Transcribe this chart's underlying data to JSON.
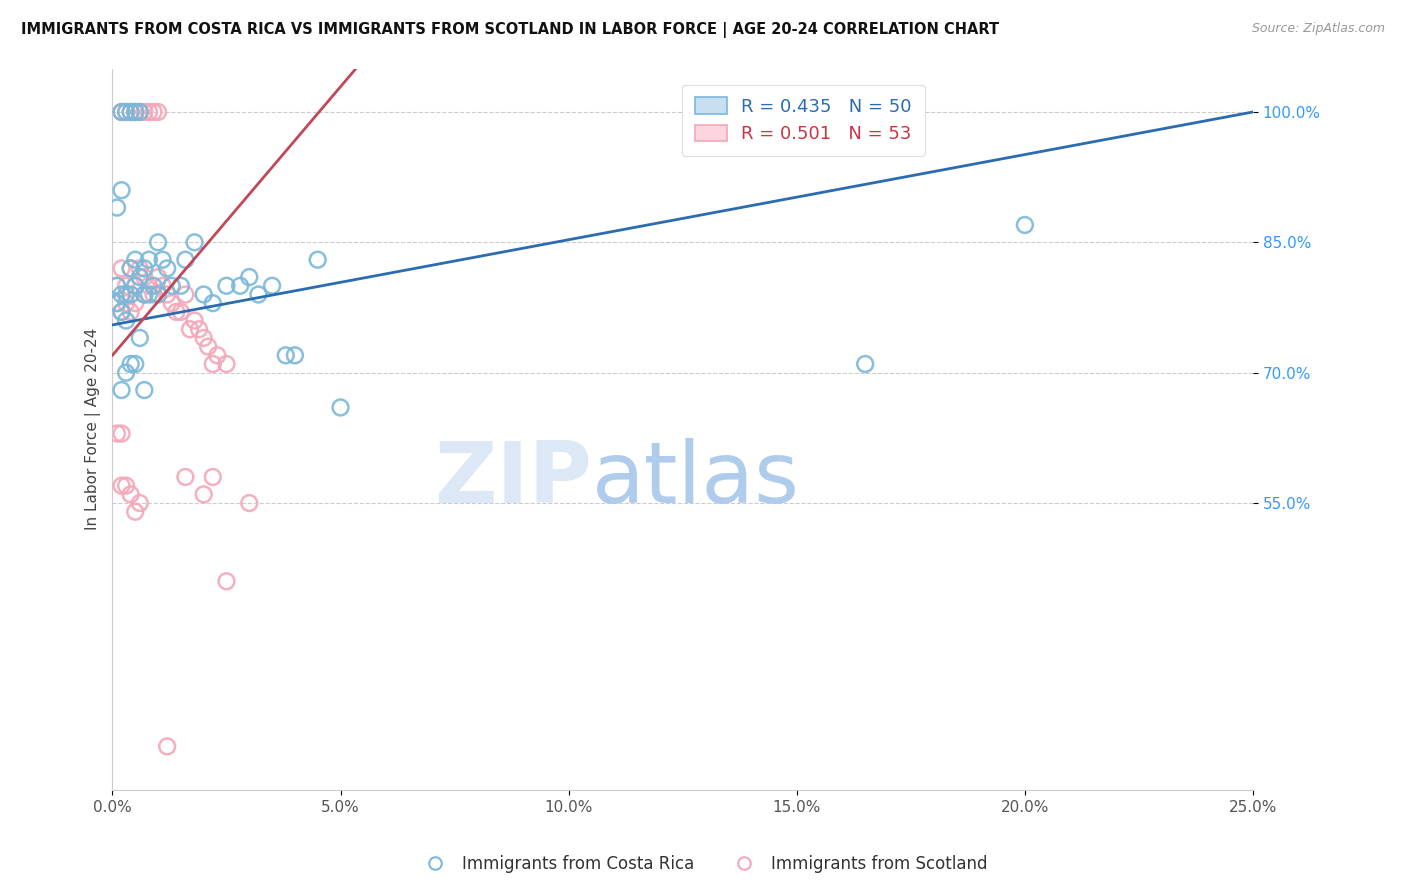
{
  "title": "IMMIGRANTS FROM COSTA RICA VS IMMIGRANTS FROM SCOTLAND IN LABOR FORCE | AGE 20-24 CORRELATION CHART",
  "source": "Source: ZipAtlas.com",
  "ylabel": "In Labor Force | Age 20-24",
  "blue_label": "Immigrants from Costa Rica",
  "pink_label": "Immigrants from Scotland",
  "background_color": "#ffffff",
  "blue_color": "#7ab8d9",
  "pink_color": "#f4a7b8",
  "blue_line_color": "#2b6cb0",
  "pink_line_color": "#c0485a",
  "watermark_zip": "ZIP",
  "watermark_atlas": "atlas",
  "blue_R": 0.435,
  "blue_N": 50,
  "pink_R": 0.501,
  "pink_N": 53,
  "xlim": [
    0.0,
    0.25
  ],
  "ylim": [
    0.22,
    1.05
  ],
  "yticks": [
    0.55,
    0.7,
    0.85,
    1.0
  ],
  "ytick_labels": [
    "55.0%",
    "70.0%",
    "85.0%",
    "100.0%"
  ],
  "xticks": [
    0.0,
    0.05,
    0.1,
    0.15,
    0.2,
    0.25
  ],
  "xtick_labels": [
    "0.0%",
    "5.0%",
    "10.0%",
    "15.0%",
    "20.0%",
    "25.0%"
  ],
  "blue_x": [
    0.001,
    0.001,
    0.002,
    0.002,
    0.002,
    0.003,
    0.003,
    0.003,
    0.004,
    0.004,
    0.004,
    0.005,
    0.005,
    0.005,
    0.006,
    0.006,
    0.007,
    0.007,
    0.008,
    0.008,
    0.009,
    0.01,
    0.01,
    0.011,
    0.012,
    0.013,
    0.015,
    0.016,
    0.018,
    0.02,
    0.022,
    0.025,
    0.028,
    0.03,
    0.032,
    0.035,
    0.038,
    0.04,
    0.045,
    0.05,
    0.001,
    0.002,
    0.002,
    0.003,
    0.004,
    0.005,
    0.006,
    0.007,
    0.2,
    0.165
  ],
  "blue_y": [
    0.8,
    0.78,
    1.0,
    0.79,
    0.77,
    1.0,
    0.79,
    0.76,
    1.0,
    0.82,
    0.79,
    1.0,
    0.83,
    0.8,
    0.81,
    1.0,
    0.82,
    0.79,
    0.83,
    0.79,
    0.8,
    0.85,
    0.79,
    0.83,
    0.82,
    0.8,
    0.8,
    0.83,
    0.85,
    0.79,
    0.78,
    0.8,
    0.8,
    0.81,
    0.79,
    0.8,
    0.72,
    0.72,
    0.83,
    0.66,
    0.89,
    0.91,
    0.68,
    0.7,
    0.71,
    0.71,
    0.74,
    0.68,
    0.87,
    0.71
  ],
  "pink_x": [
    0.001,
    0.001,
    0.002,
    0.002,
    0.002,
    0.003,
    0.003,
    0.003,
    0.004,
    0.004,
    0.004,
    0.005,
    0.005,
    0.005,
    0.005,
    0.006,
    0.006,
    0.007,
    0.007,
    0.007,
    0.008,
    0.008,
    0.009,
    0.009,
    0.01,
    0.01,
    0.011,
    0.012,
    0.013,
    0.014,
    0.015,
    0.016,
    0.017,
    0.018,
    0.019,
    0.02,
    0.021,
    0.022,
    0.023,
    0.025,
    0.001,
    0.002,
    0.002,
    0.003,
    0.004,
    0.005,
    0.006,
    0.02,
    0.025,
    0.03,
    0.012,
    0.016,
    0.022
  ],
  "pink_y": [
    0.78,
    0.8,
    0.77,
    0.82,
    1.0,
    0.8,
    0.78,
    1.0,
    0.77,
    0.82,
    1.0,
    0.8,
    0.78,
    1.0,
    1.0,
    0.82,
    1.0,
    0.79,
    0.81,
    1.0,
    0.8,
    1.0,
    0.79,
    1.0,
    0.81,
    1.0,
    0.8,
    0.79,
    0.78,
    0.77,
    0.77,
    0.79,
    0.75,
    0.76,
    0.75,
    0.74,
    0.73,
    0.71,
    0.72,
    0.71,
    0.63,
    0.63,
    0.57,
    0.57,
    0.56,
    0.54,
    0.55,
    0.56,
    0.46,
    0.55,
    0.27,
    0.58,
    0.58
  ]
}
